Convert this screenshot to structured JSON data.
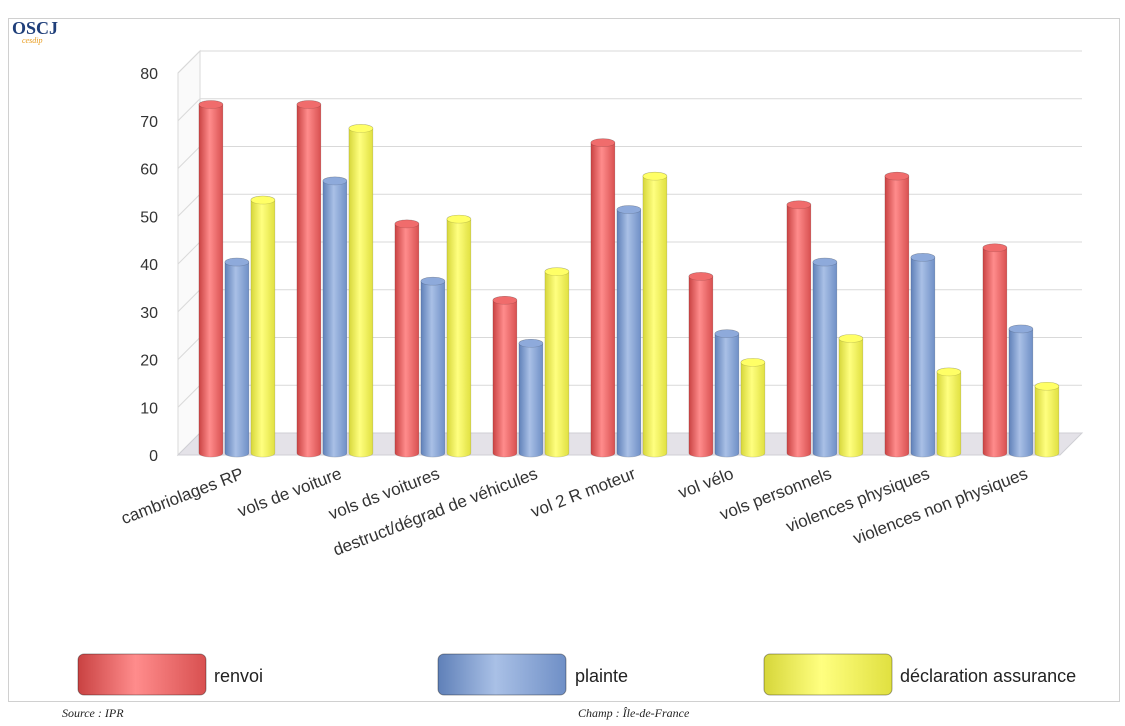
{
  "header": {
    "logo_text": "OSCJ",
    "logo_subtext": "cesdip"
  },
  "footer": {
    "source": "Source : IPR",
    "scope": "Champ : Île-de-France"
  },
  "chart_data": {
    "type": "bar",
    "title": "",
    "xlabel": "",
    "ylabel": "",
    "ylim": [
      0,
      80
    ],
    "yticks": [
      0,
      10,
      20,
      30,
      40,
      50,
      60,
      70,
      80
    ],
    "grid": true,
    "legend_position": "bottom",
    "categories": [
      "cambriolages RP",
      "vols de voiture",
      "vols ds voitures",
      "destruct/dégrad de véhicules",
      "vol 2 R moteur",
      "vol vélo",
      "vols personnels",
      "violences physiques",
      "violences non physiques"
    ],
    "series": [
      {
        "name": "renvoi",
        "color": "#f06c6c",
        "values": [
          73,
          73,
          48,
          32,
          65,
          37,
          52,
          58,
          43
        ]
      },
      {
        "name": "plainte",
        "color": "#8eaadb",
        "values": [
          40,
          57,
          36,
          23,
          51,
          25,
          40,
          41,
          26
        ]
      },
      {
        "name": "déclaration assurance",
        "color": "#ffff66",
        "values": [
          53,
          68,
          49,
          38,
          58,
          19,
          24,
          17,
          14
        ]
      }
    ]
  }
}
